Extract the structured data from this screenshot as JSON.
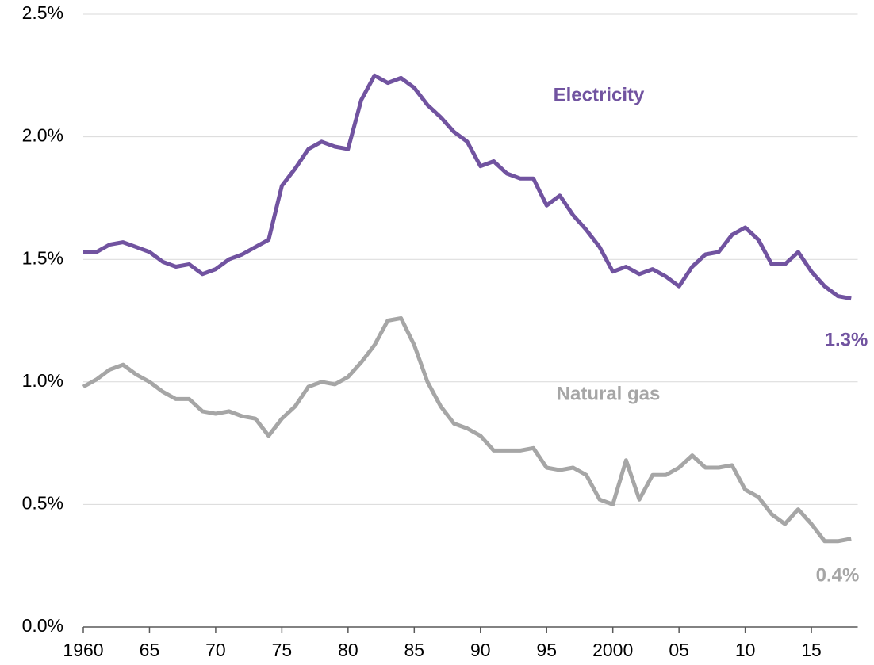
{
  "chart_data": {
    "type": "line",
    "x": [
      1960,
      1961,
      1962,
      1963,
      1964,
      1965,
      1966,
      1967,
      1968,
      1969,
      1970,
      1971,
      1972,
      1973,
      1974,
      1975,
      1976,
      1977,
      1978,
      1979,
      1980,
      1981,
      1982,
      1983,
      1984,
      1985,
      1986,
      1987,
      1988,
      1989,
      1990,
      1991,
      1992,
      1993,
      1994,
      1995,
      1996,
      1997,
      1998,
      1999,
      2000,
      2001,
      2002,
      2003,
      2004,
      2005,
      2006,
      2007,
      2008,
      2009,
      2010,
      2011,
      2012,
      2013,
      2014,
      2015,
      2016,
      2017,
      2018
    ],
    "series": [
      {
        "name": "Electricity",
        "color": "#7153a0",
        "values": [
          1.53,
          1.53,
          1.56,
          1.57,
          1.55,
          1.53,
          1.49,
          1.47,
          1.48,
          1.44,
          1.46,
          1.5,
          1.52,
          1.55,
          1.58,
          1.8,
          1.87,
          1.95,
          1.98,
          1.96,
          1.95,
          2.15,
          2.25,
          2.22,
          2.24,
          2.2,
          2.13,
          2.08,
          2.02,
          1.98,
          1.88,
          1.9,
          1.85,
          1.83,
          1.83,
          1.72,
          1.76,
          1.68,
          1.62,
          1.55,
          1.45,
          1.47,
          1.44,
          1.46,
          1.43,
          1.39,
          1.47,
          1.52,
          1.53,
          1.6,
          1.63,
          1.58,
          1.48,
          1.48,
          1.53,
          1.45,
          1.39,
          1.35,
          1.34
        ]
      },
      {
        "name": "Natural gas",
        "color": "#a6a6a6",
        "values": [
          0.98,
          1.01,
          1.05,
          1.07,
          1.03,
          1.0,
          0.96,
          0.93,
          0.93,
          0.88,
          0.87,
          0.88,
          0.86,
          0.85,
          0.78,
          0.85,
          0.9,
          0.98,
          1.0,
          0.99,
          1.02,
          1.08,
          1.15,
          1.25,
          1.26,
          1.15,
          1.0,
          0.9,
          0.83,
          0.81,
          0.78,
          0.72,
          0.72,
          0.72,
          0.73,
          0.65,
          0.64,
          0.65,
          0.62,
          0.52,
          0.5,
          0.68,
          0.52,
          0.62,
          0.62,
          0.65,
          0.7,
          0.65,
          0.65,
          0.66,
          0.56,
          0.53,
          0.46,
          0.42,
          0.48,
          0.42,
          0.35,
          0.35,
          0.36
        ]
      }
    ],
    "xlim": [
      1960,
      2018.5
    ],
    "xticks": [
      1960,
      {
        "value": 1965,
        "label": "65"
      },
      {
        "value": 1970,
        "label": "70"
      },
      {
        "value": 1975,
        "label": "75"
      },
      {
        "value": 1980,
        "label": "80"
      },
      {
        "value": 1985,
        "label": "85"
      },
      {
        "value": 1990,
        "label": "90"
      },
      {
        "value": 1995,
        "label": "95"
      },
      2000,
      {
        "value": 2005,
        "label": "05"
      },
      {
        "value": 2010,
        "label": "10"
      },
      {
        "value": 2015,
        "label": "15"
      }
    ],
    "ylim": [
      0,
      2.5
    ],
    "yticks": [
      {
        "value": 0,
        "label": "0.0%"
      },
      {
        "value": 0.5,
        "label": "0.5%"
      },
      {
        "value": 1.0,
        "label": "1.0%"
      },
      {
        "value": 1.5,
        "label": "1.5%"
      },
      {
        "value": 2.0,
        "label": "2.0%"
      },
      {
        "value": 2.5,
        "label": "2.5%"
      }
    ],
    "grid": true,
    "annotations": [
      "1.3%",
      "0.4%"
    ]
  }
}
